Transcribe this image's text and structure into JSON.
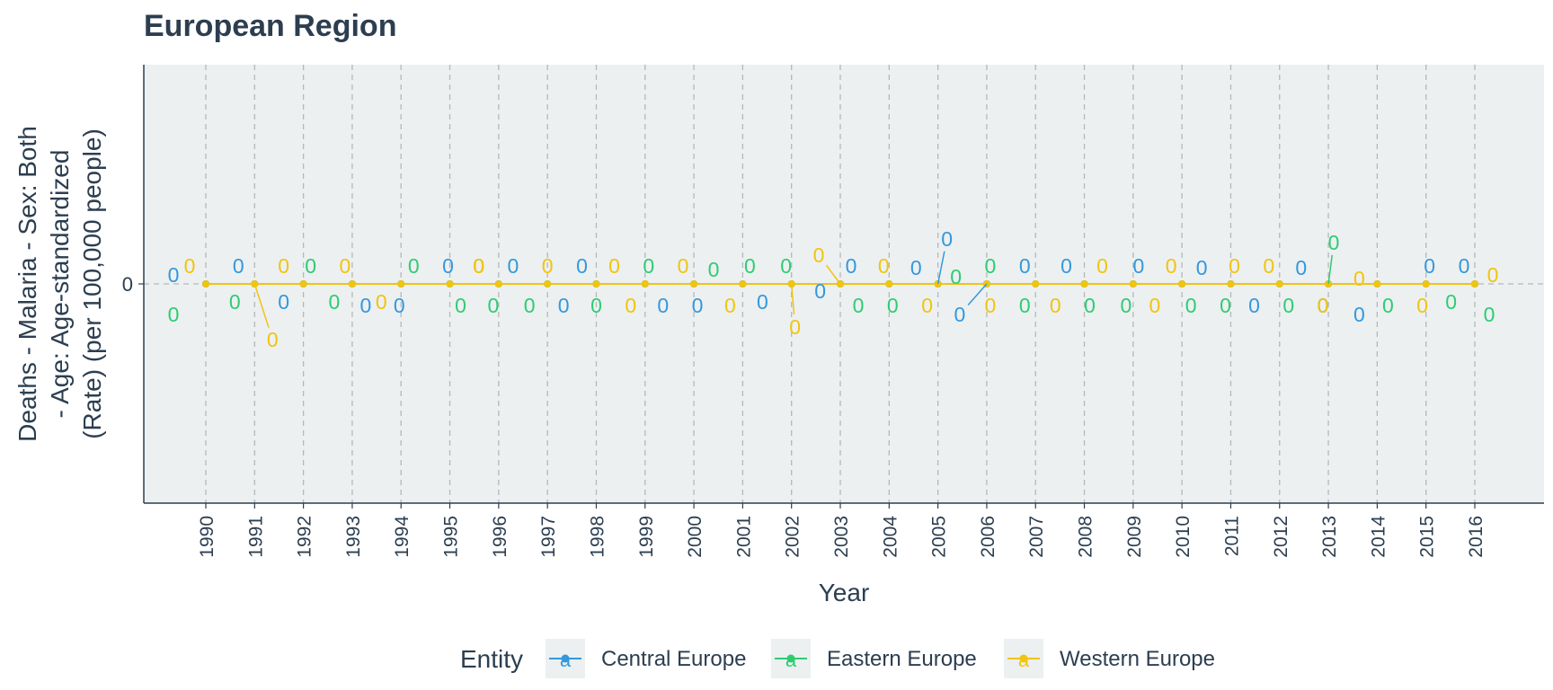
{
  "chart_data": {
    "type": "line",
    "title": "European Region",
    "xlabel": "Year",
    "ylabel_lines": [
      "Deaths - Malaria - Sex: Both",
      "- Age: Age-standardized",
      "(Rate) (per 100,000 people)"
    ],
    "y_tick_labels": [
      "0"
    ],
    "x": [
      1990,
      1991,
      1992,
      1993,
      1994,
      1995,
      1996,
      1997,
      1998,
      1999,
      2000,
      2001,
      2002,
      2003,
      2004,
      2005,
      2006,
      2007,
      2008,
      2009,
      2010,
      2011,
      2012,
      2013,
      2014,
      2015,
      2016
    ],
    "x_tick_labels": [
      "1990",
      "1991",
      "1992",
      "1993",
      "1994",
      "1995",
      "1996",
      "1997",
      "1998",
      "1999",
      "2000",
      "2001",
      "2002",
      "2003",
      "2004",
      "2005",
      "2006",
      "2007",
      "2008",
      "2009",
      "2010",
      "2011",
      "2012",
      "2013",
      "2014",
      "2015",
      "2016"
    ],
    "ylim": [
      -1,
      1
    ],
    "grid": true,
    "legend_position": "bottom",
    "legend_title": "Entity",
    "series": [
      {
        "name": "Central Europe",
        "color": "#3498db",
        "values": [
          0,
          0,
          0,
          0,
          0,
          0,
          0,
          0,
          0,
          0,
          0,
          0,
          0,
          0,
          0,
          0,
          0,
          0,
          0,
          0,
          0,
          0,
          0,
          0,
          0,
          0,
          0
        ]
      },
      {
        "name": "Eastern Europe",
        "color": "#2ecc71",
        "values": [
          0,
          0,
          0,
          0,
          0,
          0,
          0,
          0,
          0,
          0,
          0,
          0,
          0,
          0,
          0,
          0,
          0,
          0,
          0,
          0,
          0,
          0,
          0,
          0,
          0,
          0,
          0
        ]
      },
      {
        "name": "Western Europe",
        "color": "#f1c40f",
        "values": [
          0,
          0,
          0,
          0,
          0,
          0,
          0,
          0,
          0,
          0,
          0,
          0,
          0,
          0,
          0,
          0,
          0,
          0,
          0,
          0,
          0,
          0,
          0,
          0,
          0,
          0,
          0
        ]
      }
    ],
    "point_label_text": "0",
    "legend_key_glyph": "a"
  }
}
